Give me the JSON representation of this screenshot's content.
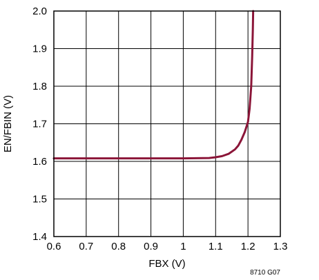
{
  "chart_data": {
    "type": "line",
    "xlabel": "FBX (V)",
    "ylabel": "EN/FBIN (V)",
    "xlim": [
      0.6,
      1.3
    ],
    "ylim": [
      1.4,
      2.0
    ],
    "xticks": [
      0.6,
      0.7,
      0.8,
      0.9,
      1.0,
      1.1,
      1.2,
      1.3
    ],
    "xtick_labels": [
      "0.6",
      "0.7",
      "0.8",
      "0.9",
      "1",
      "1.1",
      "1.2",
      "1.3"
    ],
    "yticks": [
      1.4,
      1.5,
      1.6,
      1.7,
      1.8,
      1.9,
      2.0
    ],
    "ytick_labels": [
      "1.4",
      "1.5",
      "1.6",
      "1.7",
      "1.8",
      "1.9",
      "2.0"
    ],
    "grid": true,
    "legend": "none",
    "figure_id": "8710 G07",
    "series": [
      {
        "color": "#8b1538",
        "x": [
          0.6,
          0.8,
          1.0,
          1.08,
          1.1,
          1.12,
          1.14,
          1.16,
          1.17,
          1.18,
          1.19,
          1.2,
          1.205,
          1.21,
          1.213,
          1.215,
          1.216
        ],
        "y": [
          1.608,
          1.608,
          1.608,
          1.609,
          1.611,
          1.614,
          1.62,
          1.632,
          1.642,
          1.658,
          1.678,
          1.705,
          1.74,
          1.8,
          1.88,
          1.95,
          2.0
        ]
      }
    ]
  }
}
